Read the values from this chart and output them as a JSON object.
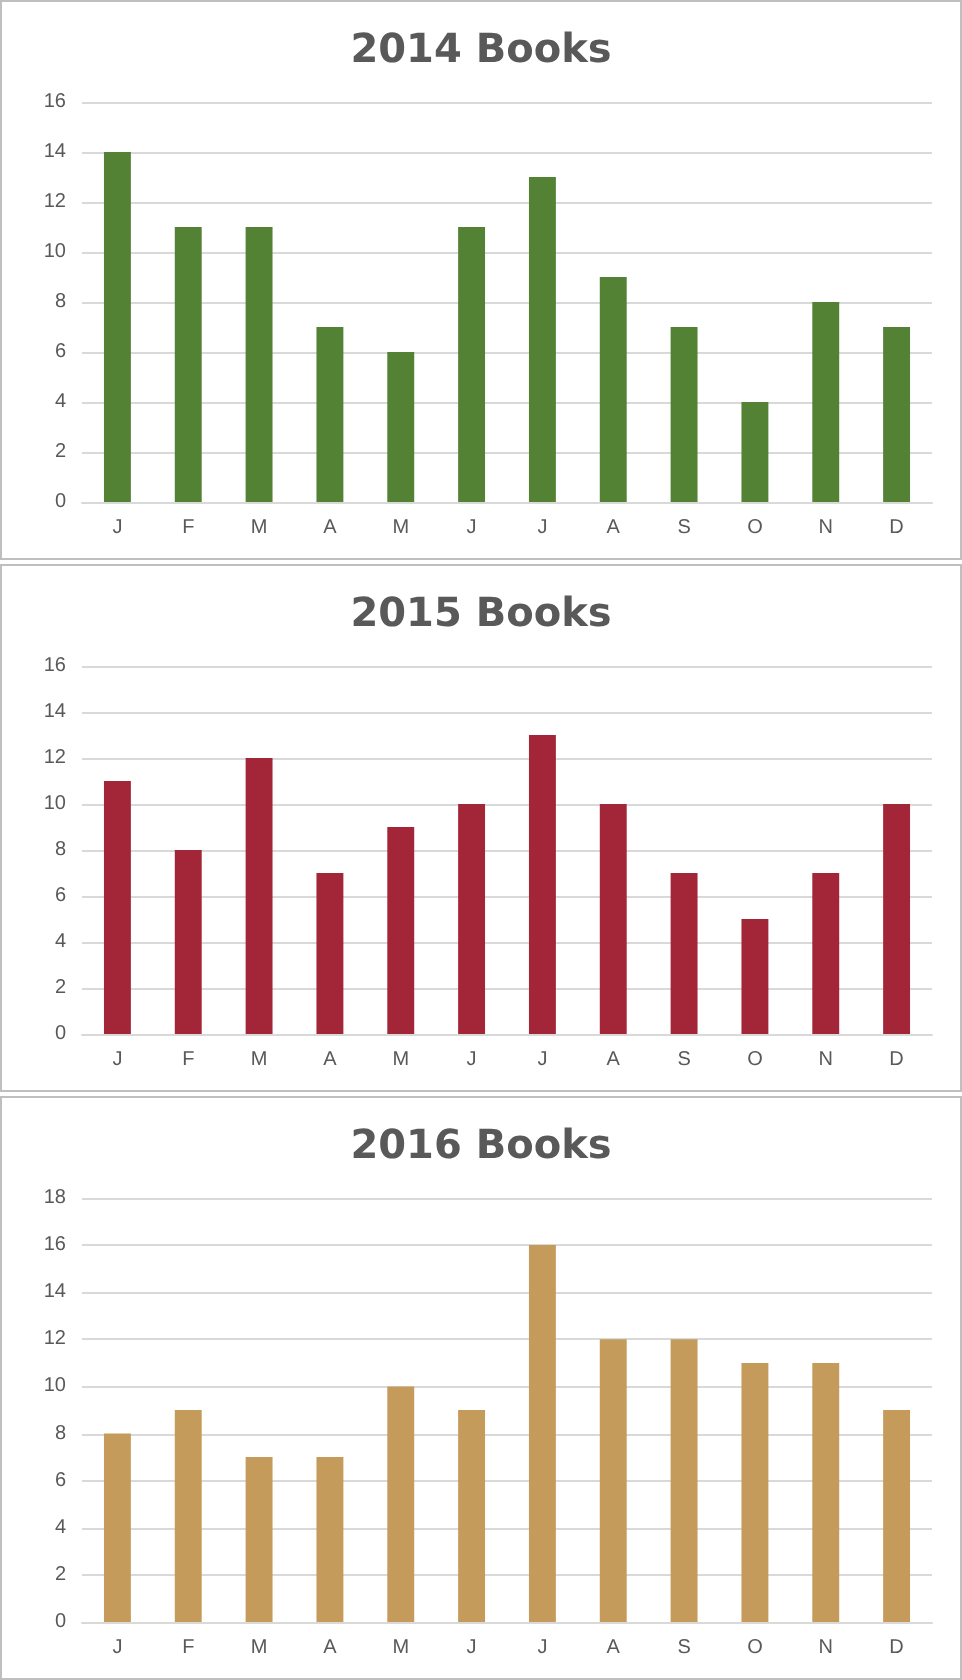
{
  "chart_data": [
    {
      "type": "bar",
      "title": "2014 Books",
      "categories": [
        "J",
        "F",
        "M",
        "A",
        "M",
        "J",
        "J",
        "A",
        "S",
        "O",
        "N",
        "D"
      ],
      "values": [
        14,
        11,
        11,
        7,
        6,
        11,
        13,
        9,
        7,
        4,
        8,
        7
      ],
      "color": "#548235",
      "ylim": [
        0,
        16
      ],
      "yticks": [
        0,
        2,
        4,
        6,
        8,
        10,
        12,
        14,
        16
      ],
      "grid": "y"
    },
    {
      "type": "bar",
      "title": "2015 Books",
      "categories": [
        "J",
        "F",
        "M",
        "A",
        "M",
        "J",
        "J",
        "A",
        "S",
        "O",
        "N",
        "D"
      ],
      "values": [
        11,
        8,
        12,
        7,
        9,
        10,
        13,
        10,
        7,
        5,
        7,
        10
      ],
      "color": "#a32638",
      "ylim": [
        0,
        16
      ],
      "yticks": [
        0,
        2,
        4,
        6,
        8,
        10,
        12,
        14,
        16
      ],
      "grid": "y"
    },
    {
      "type": "bar",
      "title": "2016 Books",
      "categories": [
        "J",
        "F",
        "M",
        "A",
        "M",
        "J",
        "J",
        "A",
        "S",
        "O",
        "N",
        "D"
      ],
      "values": [
        8,
        9,
        7,
        7,
        10,
        9,
        16,
        12,
        12,
        11,
        11,
        9
      ],
      "color": "#c59b5b",
      "ylim": [
        0,
        18
      ],
      "yticks": [
        0,
        2,
        4,
        6,
        8,
        10,
        12,
        14,
        16,
        18
      ],
      "grid": "y"
    }
  ]
}
